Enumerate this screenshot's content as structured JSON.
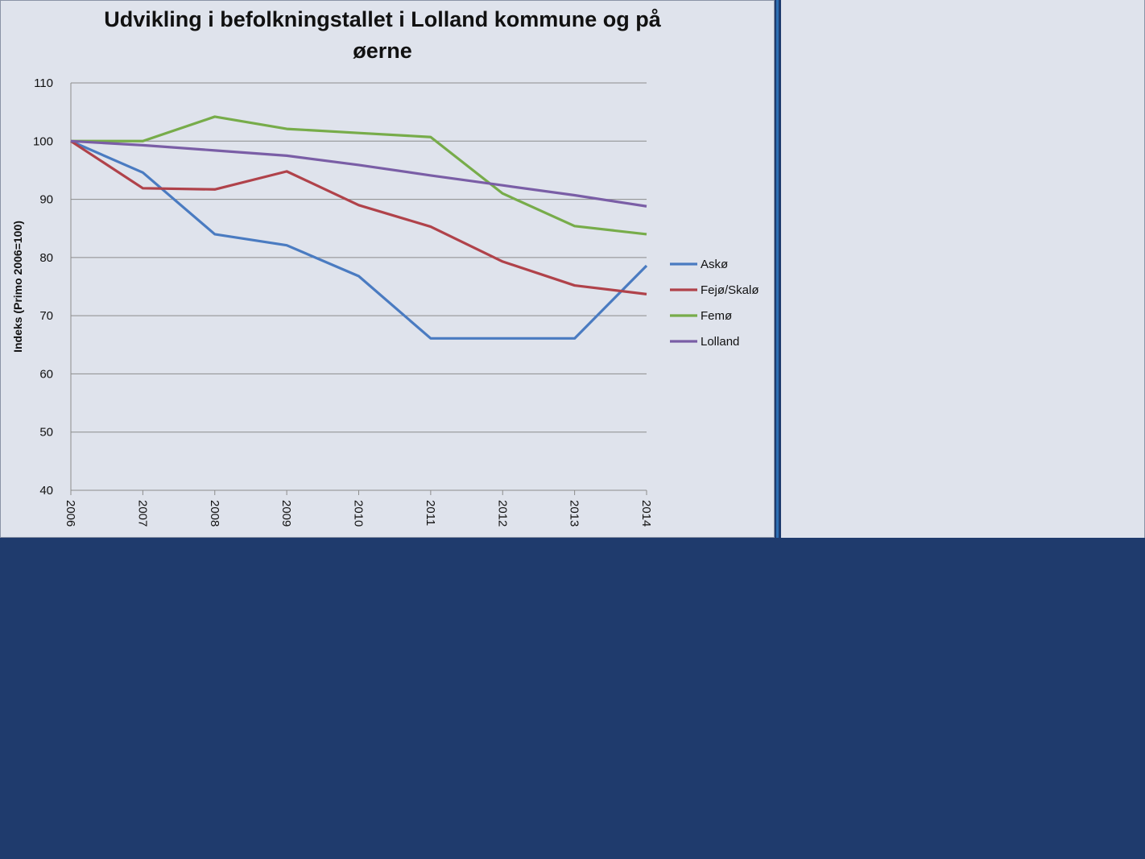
{
  "chart_data": {
    "type": "line",
    "title_line1": "Udvikling i befolkningstallet i Lolland kommune og på",
    "title_line2": "øerne",
    "ylabel": "Indeks (Primo 2006=100)",
    "xlabel": "",
    "ylim": [
      40,
      110
    ],
    "yticks": [
      40,
      50,
      60,
      70,
      80,
      90,
      100,
      110
    ],
    "categories": [
      "2006",
      "2007",
      "2008",
      "2009",
      "2010",
      "2011",
      "2012",
      "2013",
      "2014"
    ],
    "grid": true,
    "legend_position": "right",
    "series": [
      {
        "name": "Askø",
        "color": "#4a7bc1",
        "values": [
          100,
          94.6,
          84.0,
          82.1,
          76.8,
          66.1,
          66.1,
          66.1,
          78.6
        ]
      },
      {
        "name": "Fejø/Skalø",
        "color": "#b0424a",
        "values": [
          100,
          91.9,
          91.7,
          94.8,
          89.0,
          85.3,
          79.3,
          75.2,
          73.7
        ]
      },
      {
        "name": "Femø",
        "color": "#77ac4a",
        "values": [
          100,
          100,
          104.2,
          102.1,
          101.4,
          100.7,
          91.0,
          85.4,
          84.0
        ]
      },
      {
        "name": "Lolland",
        "color": "#7a5ea6",
        "values": [
          100,
          99.3,
          98.4,
          97.5,
          95.9,
          94.1,
          92.4,
          90.7,
          88.8
        ]
      }
    ]
  }
}
